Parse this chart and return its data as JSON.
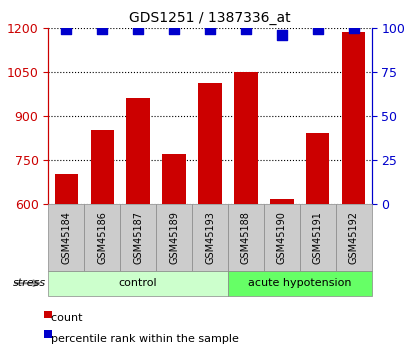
{
  "title": "GDS1251 / 1387336_at",
  "samples": [
    "GSM45184",
    "GSM45186",
    "GSM45187",
    "GSM45189",
    "GSM45193",
    "GSM45188",
    "GSM45190",
    "GSM45191",
    "GSM45192"
  ],
  "counts": [
    700,
    850,
    960,
    770,
    1010,
    1050,
    615,
    840,
    1185
  ],
  "percentiles": [
    99,
    99,
    99,
    99,
    99,
    99,
    96,
    99,
    100
  ],
  "groups": [
    "control",
    "control",
    "control",
    "control",
    "control",
    "acute hypotension",
    "acute hypotension",
    "acute hypotension",
    "acute hypotension"
  ],
  "group_info": [
    {
      "name": "control",
      "start": 0,
      "end": 4,
      "color": "#ccffcc"
    },
    {
      "name": "acute hypotension",
      "start": 5,
      "end": 8,
      "color": "#66ff66"
    }
  ],
  "ylim_left": [
    600,
    1200
  ],
  "ylim_right": [
    0,
    100
  ],
  "yticks_left": [
    600,
    750,
    900,
    1050,
    1200
  ],
  "yticks_right": [
    0,
    25,
    50,
    75,
    100
  ],
  "bar_color": "#cc0000",
  "dot_color": "#0000cc",
  "label_bg_color": "#cccccc",
  "bar_bottom": 600,
  "bar_width": 0.65
}
